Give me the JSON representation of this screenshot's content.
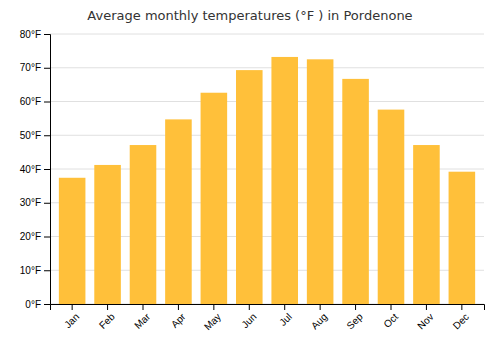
{
  "chart_data": {
    "type": "bar",
    "title": "Average monthly temperatures (°F ) in Pordenone",
    "categories": [
      "Jan",
      "Feb",
      "Mar",
      "Apr",
      "May",
      "Jun",
      "Jul",
      "Aug",
      "Sep",
      "Oct",
      "Nov",
      "Dec"
    ],
    "values": [
      37.4,
      41.2,
      47.1,
      54.7,
      62.6,
      69.3,
      73.2,
      72.5,
      66.7,
      57.6,
      47.1,
      39.2
    ],
    "color": "#FFC03A",
    "ylim": [
      0,
      80
    ],
    "yticks": [
      {
        "value": 0,
        "label": "0°F"
      },
      {
        "value": 10,
        "label": "10°F"
      },
      {
        "value": 20,
        "label": "20°F"
      },
      {
        "value": 30,
        "label": "30°F"
      },
      {
        "value": 40,
        "label": "40°F"
      },
      {
        "value": 50,
        "label": "50°F"
      },
      {
        "value": 60,
        "label": "60°F"
      },
      {
        "value": 70,
        "label": "70°F"
      },
      {
        "value": 80,
        "label": "80°F"
      }
    ],
    "grid": true
  }
}
